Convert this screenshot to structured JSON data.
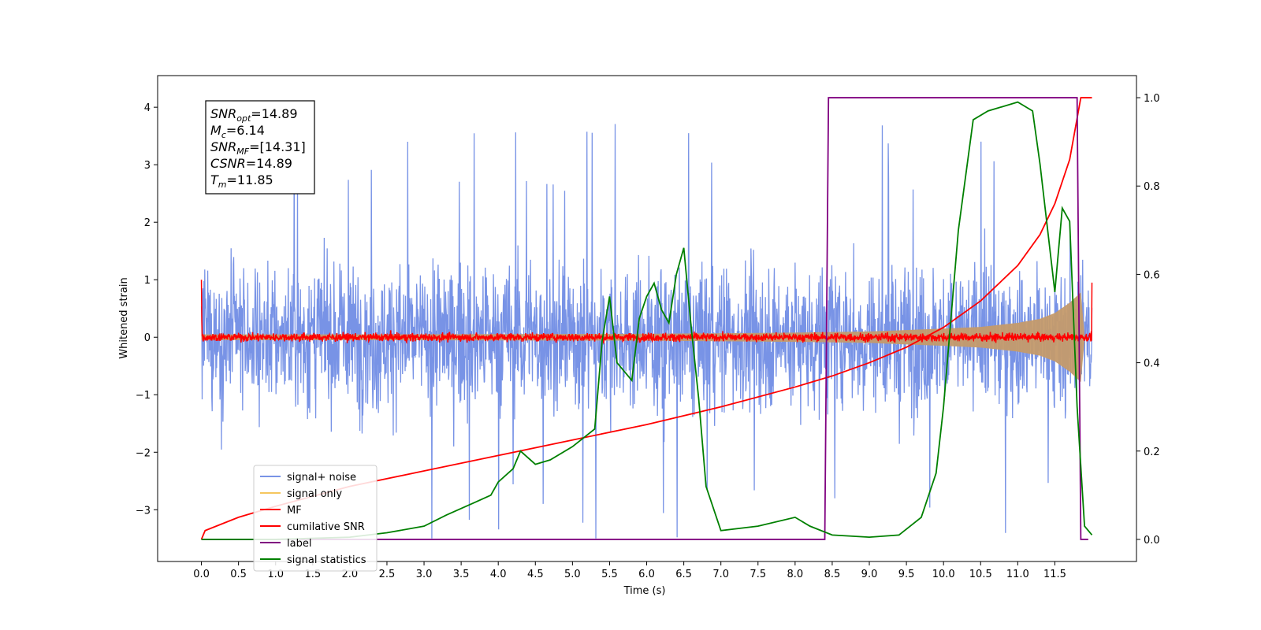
{
  "chart_data": {
    "type": "line",
    "title": "",
    "xlabel": "Time (s)",
    "ylabel": "Whitened strain",
    "x_ticks": [
      0.0,
      0.5,
      1.0,
      1.5,
      2.0,
      2.5,
      3.0,
      3.5,
      4.0,
      4.5,
      5.0,
      5.5,
      6.0,
      6.5,
      7.0,
      7.5,
      8.0,
      8.5,
      9.0,
      9.5,
      10.0,
      10.5,
      11.0,
      11.5
    ],
    "x_tick_labels": [
      "0.0",
      "0.5",
      "1.0",
      "1.5",
      "2.0",
      "2.5",
      "3.0",
      "3.5",
      "4.0",
      "4.5",
      "5.0",
      "5.5",
      "6.0",
      "6.5",
      "7.0",
      "7.5",
      "8.0",
      "8.5",
      "9.0",
      "9.5",
      "10.0",
      "10.5",
      "11.0",
      "11.5"
    ],
    "xlim": [
      -0.59,
      12.6
    ],
    "y_left_ticks": [
      -3,
      -2,
      -1,
      0,
      1,
      2,
      3,
      4
    ],
    "y_left_tick_labels": [
      "−3",
      "−2",
      "−1",
      "0",
      "1",
      "2",
      "3",
      "4"
    ],
    "ylim_left": [
      -3.9,
      4.55
    ],
    "y_right_ticks": [
      0.0,
      0.2,
      0.4,
      0.6,
      0.8,
      1.0
    ],
    "y_right_tick_labels": [
      "0.0",
      "0.2",
      "0.4",
      "0.6",
      "0.8",
      "1.0"
    ],
    "ylim_right": [
      -0.05,
      1.05
    ],
    "grid": false,
    "legend_position": "lower-left",
    "info_box": {
      "lines": [
        {
          "main": "SNR",
          "sub": "opt",
          "rest": "=14.89"
        },
        {
          "main": "M",
          "sub": "c",
          "rest": "=6.14"
        },
        {
          "main": "SNR",
          "sub": "MF",
          "rest": "=[14.31]"
        },
        {
          "main": "CSNR",
          "sub": "",
          "rest": "=14.89"
        },
        {
          "main": "T",
          "sub": "m",
          "rest": "=11.85"
        }
      ]
    },
    "series": [
      {
        "name": "signal+ noise",
        "axis": "left",
        "style": "noise-band",
        "color": "#7893e6",
        "t_range": [
          0.0,
          12.0
        ],
        "typical_extent": [
          -1.8,
          1.9
        ],
        "max_value": 4.2,
        "min_value": -3.5
      },
      {
        "name": "signal only",
        "axis": "left",
        "style": "chirp-envelope",
        "color": "#f5c65e",
        "fill_color": "#c49a6c",
        "envelope": {
          "t": [
            0.0,
            2.0,
            4.0,
            6.0,
            8.0,
            9.0,
            10.0,
            10.5,
            11.0,
            11.3,
            11.5,
            11.7,
            11.85,
            11.9
          ],
          "amp": [
            0.05,
            0.05,
            0.055,
            0.06,
            0.08,
            0.1,
            0.15,
            0.18,
            0.25,
            0.32,
            0.42,
            0.6,
            0.78,
            0.05
          ]
        }
      },
      {
        "name": "MF",
        "axis": "left",
        "style": "noise-line",
        "color": "#ff0000",
        "t_range": [
          0.0,
          12.0
        ],
        "typical_extent": [
          -0.12,
          0.12
        ],
        "start_spike": 1.0,
        "end_spike": 0.95
      },
      {
        "name": "cumilative SNR",
        "axis": "right",
        "style": "line",
        "color": "#ff0000",
        "x": [
          0.0,
          0.05,
          0.5,
          1.0,
          2.0,
          3.0,
          4.0,
          5.0,
          6.0,
          7.0,
          8.0,
          8.5,
          9.0,
          9.5,
          10.0,
          10.5,
          11.0,
          11.3,
          11.5,
          11.7,
          11.85,
          12.0
        ],
        "y": [
          0.0,
          0.02,
          0.05,
          0.075,
          0.12,
          0.155,
          0.19,
          0.225,
          0.26,
          0.3,
          0.345,
          0.37,
          0.4,
          0.435,
          0.48,
          0.54,
          0.62,
          0.69,
          0.76,
          0.86,
          1.0,
          1.0
        ]
      },
      {
        "name": "label",
        "axis": "right",
        "style": "line",
        "color": "#800080",
        "x": [
          0.0,
          8.4,
          8.45,
          11.8,
          11.85,
          11.95
        ],
        "y": [
          0.0,
          0.0,
          1.0,
          1.0,
          0.0,
          0.0
        ]
      },
      {
        "name": "signal statistics",
        "axis": "right",
        "style": "line",
        "color": "#008000",
        "x": [
          0.0,
          1.0,
          2.0,
          2.5,
          3.0,
          3.3,
          3.5,
          3.7,
          3.9,
          4.0,
          4.2,
          4.3,
          4.5,
          4.7,
          5.0,
          5.3,
          5.4,
          5.5,
          5.6,
          5.7,
          5.8,
          5.9,
          6.0,
          6.1,
          6.2,
          6.3,
          6.4,
          6.5,
          6.6,
          6.7,
          6.8,
          7.0,
          7.5,
          8.0,
          8.2,
          8.5,
          9.0,
          9.4,
          9.7,
          9.9,
          10.0,
          10.2,
          10.4,
          10.6,
          11.0,
          11.2,
          11.3,
          11.5,
          11.6,
          11.7,
          11.8,
          11.9,
          12.0
        ],
        "y": [
          0.0,
          0.0,
          0.005,
          0.015,
          0.03,
          0.055,
          0.07,
          0.085,
          0.1,
          0.13,
          0.16,
          0.2,
          0.17,
          0.18,
          0.21,
          0.25,
          0.45,
          0.55,
          0.4,
          0.38,
          0.36,
          0.5,
          0.55,
          0.58,
          0.52,
          0.49,
          0.6,
          0.66,
          0.48,
          0.32,
          0.12,
          0.02,
          0.03,
          0.05,
          0.03,
          0.01,
          0.005,
          0.01,
          0.05,
          0.15,
          0.3,
          0.7,
          0.95,
          0.97,
          0.99,
          0.97,
          0.85,
          0.56,
          0.75,
          0.72,
          0.3,
          0.03,
          0.01
        ]
      }
    ]
  }
}
